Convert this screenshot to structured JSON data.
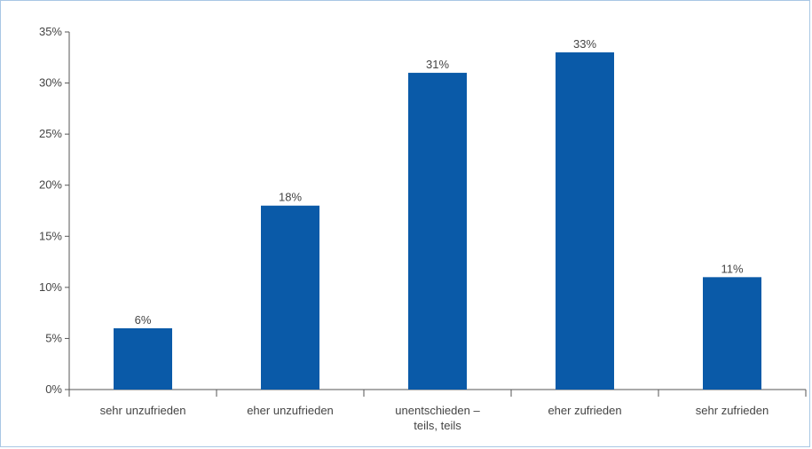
{
  "chart_data": {
    "type": "bar",
    "categories": [
      "sehr unzufrieden",
      "eher unzufrieden",
      "unentschieden – teils, teils",
      "eher zufrieden",
      "sehr zufrieden"
    ],
    "category_lines": [
      [
        "sehr unzufrieden"
      ],
      [
        "eher unzufrieden"
      ],
      [
        "unentschieden –",
        "teils, teils"
      ],
      [
        "eher zufrieden"
      ],
      [
        "sehr zufrieden"
      ]
    ],
    "values": [
      6,
      18,
      31,
      33,
      11
    ],
    "data_labels": [
      "6%",
      "18%",
      "31%",
      "33%",
      "11%"
    ],
    "title": "",
    "xlabel": "",
    "ylabel": "",
    "ylim": [
      0,
      35
    ],
    "yticks": [
      0,
      5,
      10,
      15,
      20,
      25,
      30,
      35
    ],
    "ytick_labels": [
      "0%",
      "5%",
      "10%",
      "15%",
      "20%",
      "25%",
      "30%",
      "35%"
    ],
    "grid": false,
    "bar_color": "#0a5aa8",
    "axis_color": "#555555",
    "frame_color": "#a9c7e4"
  }
}
